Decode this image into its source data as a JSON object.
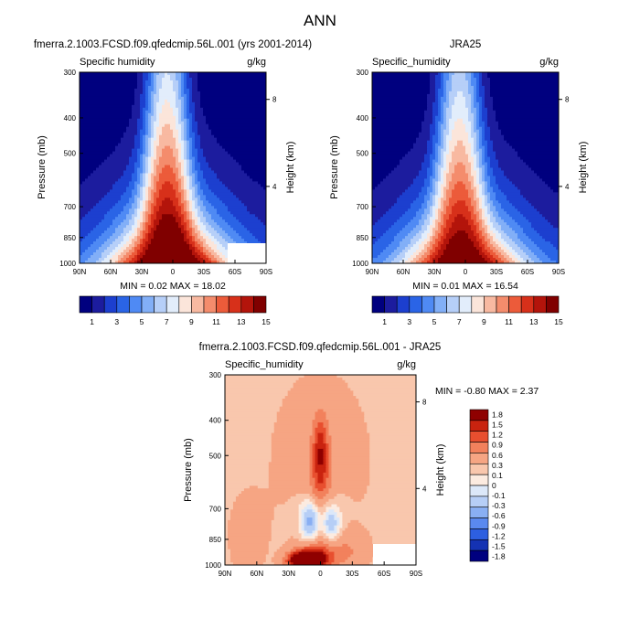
{
  "page_title": "ANN",
  "colors": {
    "ncl_blue_red": [
      "#00007f",
      "#1c1c9e",
      "#1c3fcf",
      "#2a64e6",
      "#4f8af4",
      "#82aff7",
      "#b6cff8",
      "#e2edfb",
      "#fbe5da",
      "#f8b9a1",
      "#f48c6c",
      "#ec5b3a",
      "#d7301a",
      "#b3140b",
      "#800000"
    ],
    "diff": [
      "#00007f",
      "#1432b3",
      "#2d5fe0",
      "#5a89ef",
      "#89aff3",
      "#b6cef6",
      "#dce8f9",
      "#fcebe0",
      "#f9c7ad",
      "#f6a583",
      "#f2815c",
      "#e84f2f",
      "#c9230f",
      "#8f0000"
    ]
  },
  "chart_data": [
    {
      "type": "heatmap",
      "name": "model",
      "title": "fmerra.2.1003.FCSD.f09.qfedcmip.56L.001 (yrs 2001-2014)",
      "left_label": "Specific humidity",
      "units": "g/kg",
      "ylabel": "Pressure (mb)",
      "ylabel_right": "Height (km)",
      "yticks": [
        "300",
        "400",
        "500",
        "700",
        "850",
        "1000"
      ],
      "ytick_values": [
        300,
        400,
        500,
        700,
        850,
        1000
      ],
      "ylim": [
        300,
        1000
      ],
      "xticks": [
        "90N",
        "60N",
        "30N",
        "0",
        "30S",
        "60S",
        "90S"
      ],
      "xtick_values": [
        90,
        60,
        30,
        0,
        -30,
        -60,
        -90
      ],
      "height_ticks": [
        "8",
        "4"
      ],
      "height_tick_pressures": [
        356,
        616
      ],
      "peak_value": 18.02,
      "min_max_text": "MIN =  0.02  MAX =  18.02",
      "levels": [
        1,
        2,
        3,
        4,
        5,
        6,
        7,
        8,
        9,
        10,
        11,
        12,
        13,
        14,
        15
      ],
      "colorbar_labels": [
        "1",
        "3",
        "5",
        "7",
        "9",
        "11",
        "13",
        "15"
      ]
    },
    {
      "type": "heatmap",
      "name": "obs",
      "title": "JRA25",
      "left_label": "Specific_humidity",
      "units": "g/kg",
      "ylabel": "Pressure (mb)",
      "ylabel_right": "Height (km)",
      "yticks": [
        "300",
        "400",
        "500",
        "700",
        "850",
        "1000"
      ],
      "ytick_values": [
        300,
        400,
        500,
        700,
        850,
        1000
      ],
      "ylim": [
        300,
        1000
      ],
      "xticks": [
        "90N",
        "60N",
        "30N",
        "0",
        "30S",
        "60S",
        "90S"
      ],
      "xtick_values": [
        90,
        60,
        30,
        0,
        -30,
        -60,
        -90
      ],
      "height_ticks": [
        "8",
        "4"
      ],
      "height_tick_pressures": [
        356,
        616
      ],
      "peak_value": 16.54,
      "min_max_text": "MIN =  0.01  MAX =  16.54",
      "levels": [
        1,
        2,
        3,
        4,
        5,
        6,
        7,
        8,
        9,
        10,
        11,
        12,
        13,
        14,
        15
      ],
      "colorbar_labels": [
        "1",
        "3",
        "5",
        "7",
        "9",
        "11",
        "13",
        "15"
      ]
    },
    {
      "type": "heatmap",
      "name": "diff",
      "title": "fmerra.2.1003.FCSD.f09.qfedcmip.56L.001 - JRA25",
      "left_label": "Specific_humidity",
      "units": "g/kg",
      "ylabel": "Pressure (mb)",
      "ylabel_right": "Height (km)",
      "yticks": [
        "300",
        "400",
        "500",
        "700",
        "850",
        "1000"
      ],
      "ytick_values": [
        300,
        400,
        500,
        700,
        850,
        1000
      ],
      "ylim": [
        300,
        1000
      ],
      "xticks": [
        "90N",
        "60N",
        "30N",
        "0",
        "30S",
        "60S",
        "90S"
      ],
      "xtick_values": [
        90,
        60,
        30,
        0,
        -30,
        -60,
        -90
      ],
      "height_ticks": [
        "8",
        "4"
      ],
      "height_tick_pressures": [
        356,
        616
      ],
      "min_max_text": "MIN = -0.80  MAX =   2.37",
      "levels": [
        -1.8,
        -1.5,
        -1.2,
        -0.9,
        -0.6,
        -0.3,
        -0.1,
        0,
        0.1,
        0.3,
        0.6,
        0.9,
        1.2,
        1.5,
        1.8
      ],
      "colorbar_labels": [
        "1.8",
        "1.5",
        "1.2",
        "0.9",
        "0.6",
        "0.3",
        "0.1",
        "0",
        "-0.1",
        "-0.3",
        "-0.6",
        "-0.9",
        "-1.2",
        "-1.5",
        "-1.8"
      ]
    }
  ]
}
